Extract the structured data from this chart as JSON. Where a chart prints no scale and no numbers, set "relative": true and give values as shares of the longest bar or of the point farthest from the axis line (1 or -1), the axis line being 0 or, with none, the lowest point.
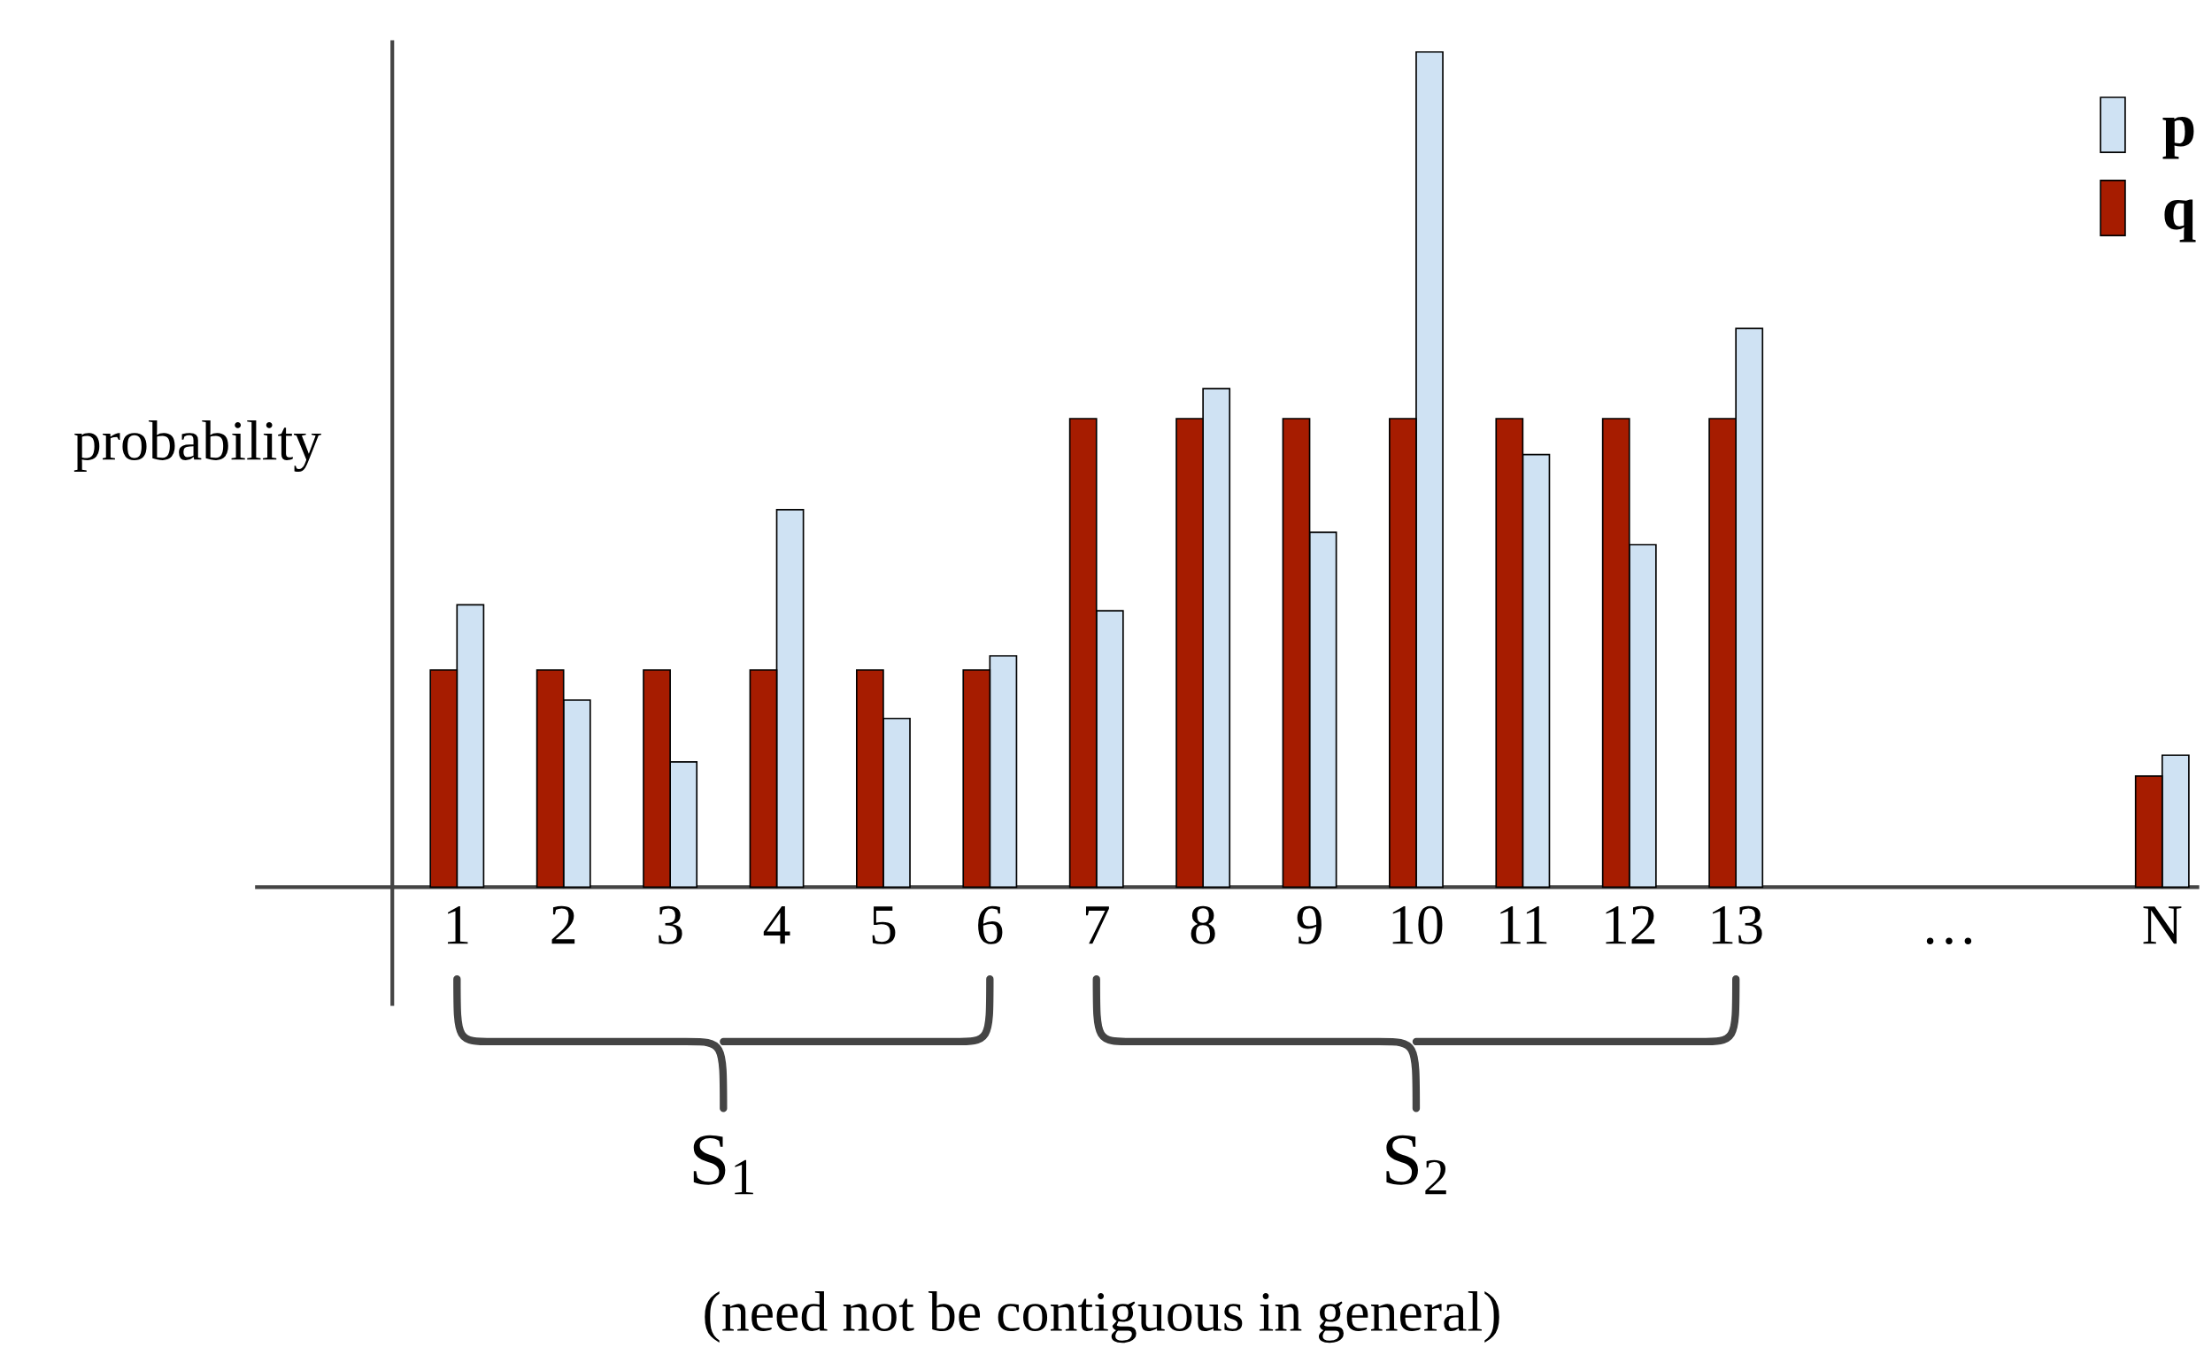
{
  "chart_data": {
    "type": "bar",
    "relative": true,
    "ylabel": "probability",
    "categories": [
      "1",
      "2",
      "3",
      "4",
      "5",
      "6",
      "7",
      "8",
      "9",
      "10",
      "11",
      "12",
      "13",
      null,
      "…",
      null,
      "N"
    ],
    "series": [
      {
        "name": "p",
        "color": "#cfe2f3",
        "values": [
          0.338,
          0.224,
          0.15,
          0.452,
          0.202,
          0.277,
          0.331,
          0.597,
          0.425,
          1,
          0.518,
          0.41,
          0.669,
          null,
          null,
          null,
          0.158
        ]
      },
      {
        "name": "q",
        "color": "#a61c00",
        "values": [
          0.26,
          0.26,
          0.26,
          0.26,
          0.26,
          0.26,
          0.561,
          0.561,
          0.561,
          0.561,
          0.561,
          0.561,
          0.561,
          null,
          null,
          null,
          0.133
        ]
      }
    ],
    "legend": "top right",
    "grid": false,
    "tick_labels": "x",
    "annotations": [
      "S$_{1}$",
      "S$_{2}$",
      "(need not be contiguous in general)"
    ]
  }
}
